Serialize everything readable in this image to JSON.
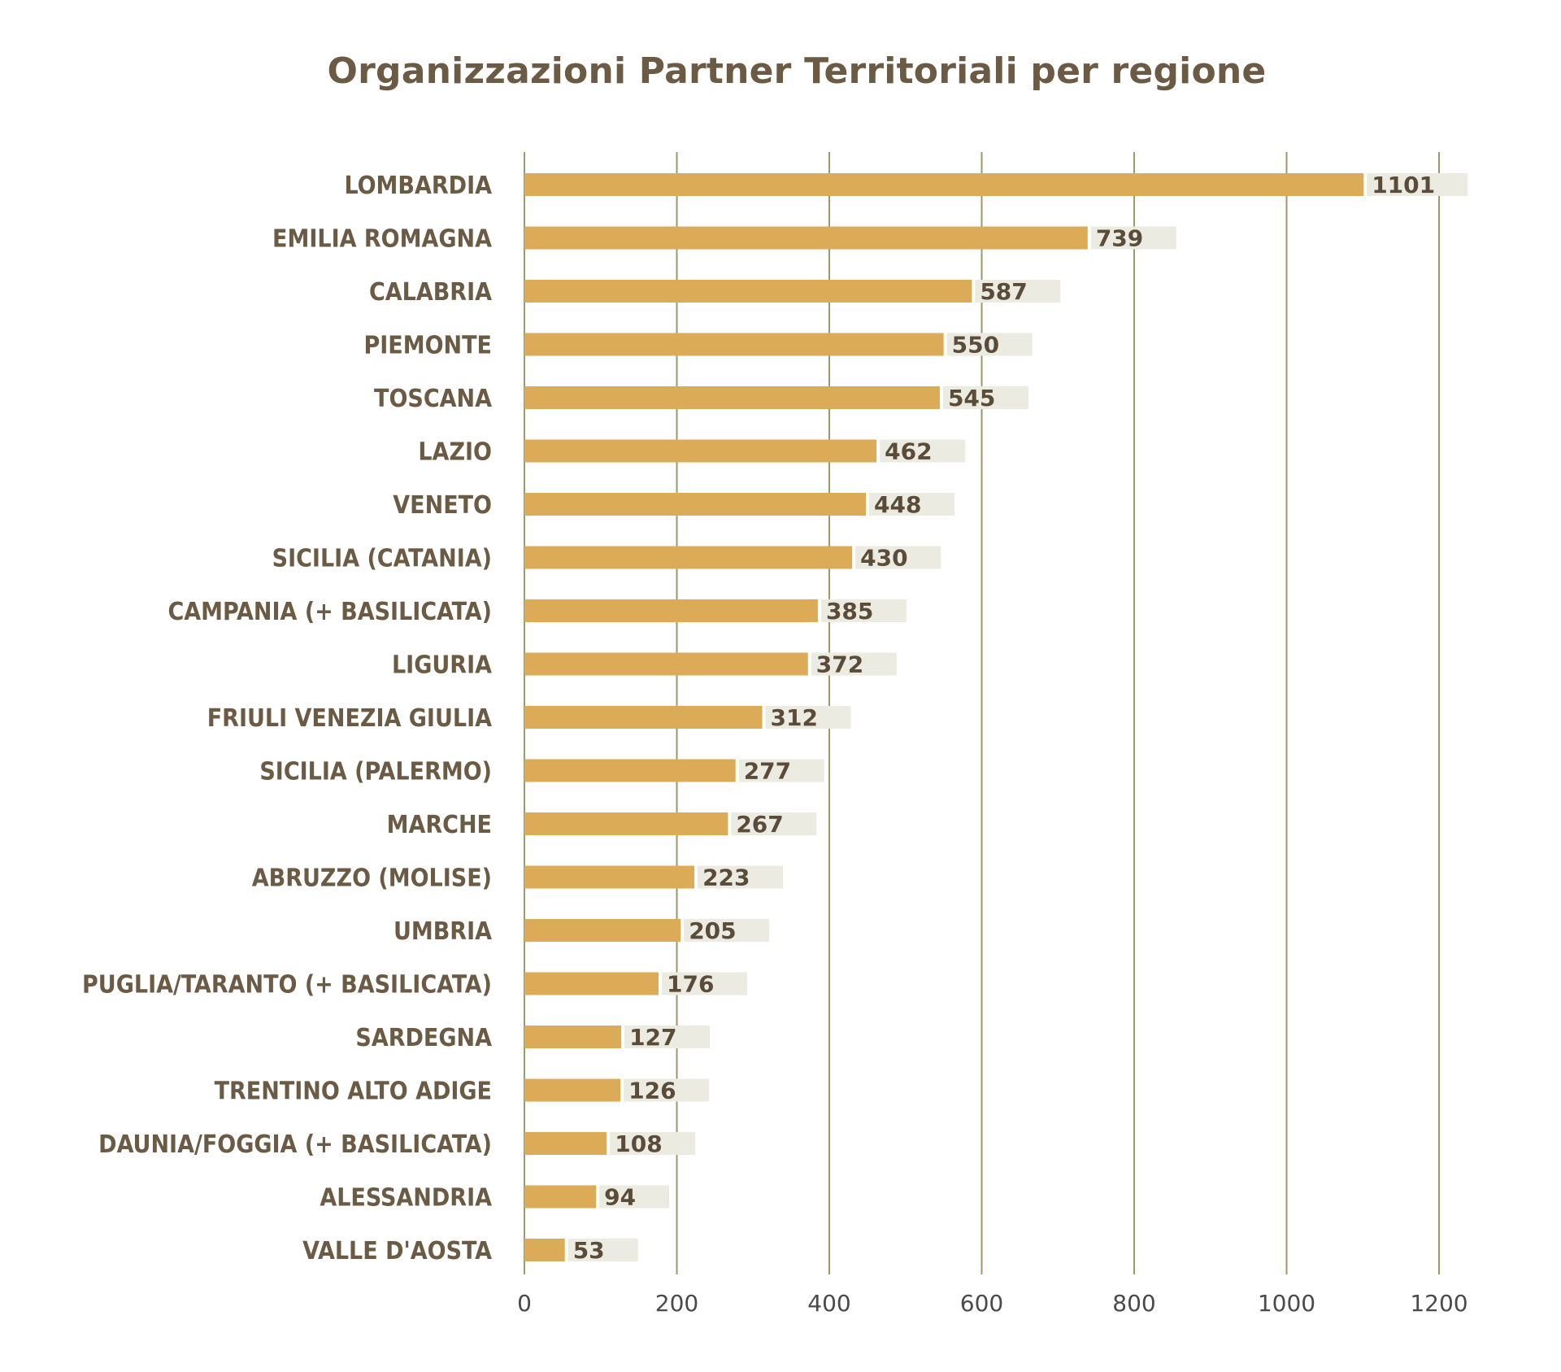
{
  "chart_data": {
    "type": "bar",
    "orientation": "horizontal",
    "title": "Organizzazioni Partner Territoriali per regione",
    "xlabel": "",
    "ylabel": "",
    "xlim": [
      0,
      1200
    ],
    "xticks": [
      0,
      200,
      400,
      600,
      800,
      1000,
      1200
    ],
    "grid": true,
    "legend": "none",
    "categories": [
      "LOMBARDIA",
      "EMILIA ROMAGNA",
      "CALABRIA",
      "PIEMONTE",
      "TOSCANA",
      "LAZIO",
      "VENETO",
      "SICILIA (CATANIA)",
      "CAMPANIA (+ BASILICATA)",
      "LIGURIA",
      "FRIULI VENEZIA GIULIA",
      "SICILIA (PALERMO)",
      "MARCHE",
      "ABRUZZO (MOLISE)",
      "UMBRIA",
      "PUGLIA/TARANTO (+ BASILICATA)",
      "SARDEGNA",
      "TRENTINO ALTO ADIGE",
      "DAUNIA/FOGGIA (+ BASILICATA)",
      "ALESSANDRIA",
      "VALLE D'AOSTA"
    ],
    "values": [
      1101,
      739,
      587,
      550,
      545,
      462,
      448,
      430,
      385,
      372,
      312,
      277,
      267,
      223,
      205,
      176,
      127,
      126,
      108,
      94,
      53
    ],
    "colors": {
      "bar": "#dbab57",
      "label_background": "#ebebe2",
      "grid": "#9a9a6e",
      "category_text": "#6b5a44",
      "value_text": "#5a4c38",
      "tick_text": "#4a4a4a",
      "title": "#6b5a44"
    }
  }
}
